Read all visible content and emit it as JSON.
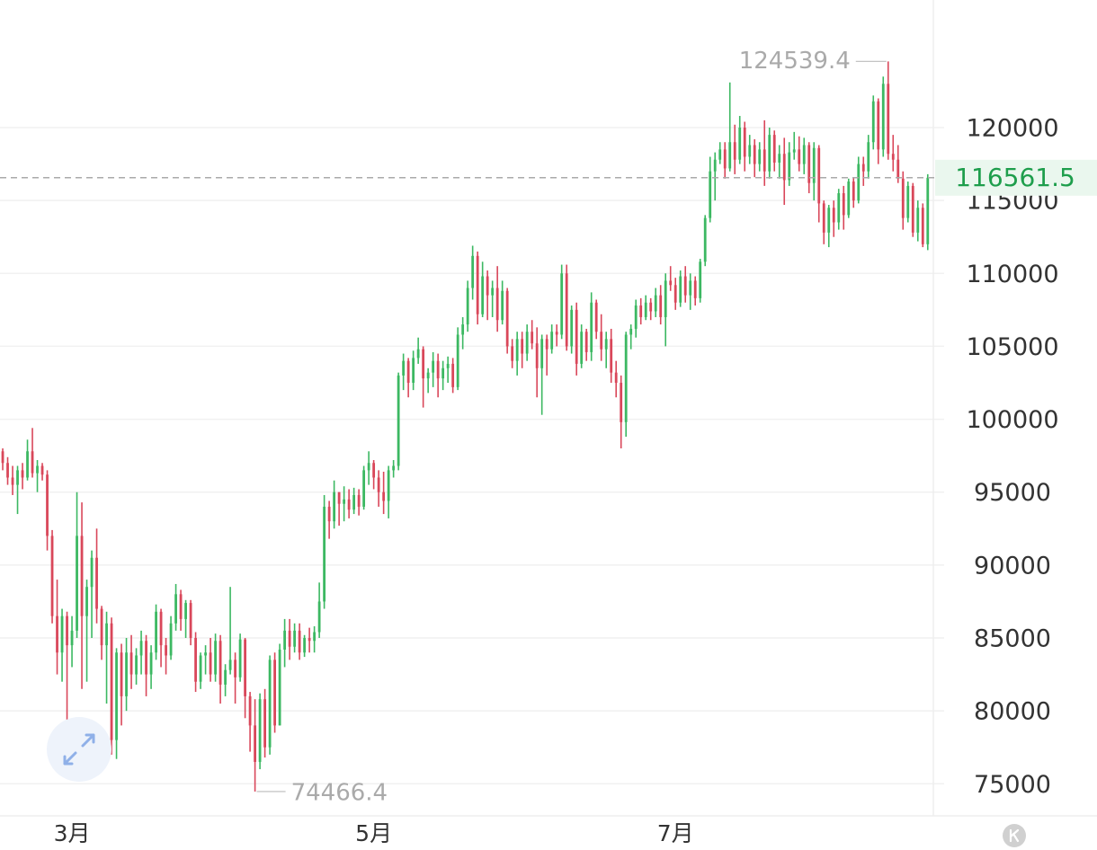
{
  "chart_data": {
    "type": "candlestick",
    "up_color": "#3cb862",
    "down_color": "#d9475a",
    "grid": true,
    "last_price_line": true,
    "xlim": [
      -0.55,
      187.95
    ],
    "xticks": [
      {
        "value": 14,
        "label": "3月"
      },
      {
        "value": 75,
        "label": "5月"
      },
      {
        "value": 136,
        "label": "7月"
      }
    ],
    "ylim": [
      72800,
      128750
    ],
    "yticks": [
      75000,
      80000,
      85000,
      90000,
      95000,
      100000,
      105000,
      110000,
      115000,
      120000
    ],
    "ohlc": [
      [
        97800,
        98000,
        96500,
        97000
      ],
      [
        97000,
        97400,
        95500,
        96000
      ],
      [
        96000,
        96800,
        94800,
        95500
      ],
      [
        95500,
        96800,
        93500,
        96500
      ],
      [
        96500,
        97000,
        95200,
        96000
      ],
      [
        96000,
        98600,
        95800,
        97800
      ],
      [
        97800,
        99400,
        96000,
        96300
      ],
      [
        96300,
        97200,
        95000,
        96800
      ],
      [
        96800,
        97000,
        95800,
        96200
      ],
      [
        96200,
        96500,
        91000,
        92000
      ],
      [
        92000,
        92400,
        86000,
        86500
      ],
      [
        86500,
        89000,
        82500,
        84000
      ],
      [
        84000,
        87000,
        82000,
        86500
      ],
      [
        86500,
        86800,
        78000,
        84500
      ],
      [
        84500,
        86500,
        83000,
        85500
      ],
      [
        85500,
        95000,
        85000,
        92000
      ],
      [
        92000,
        94300,
        81500,
        86500
      ],
      [
        86500,
        89000,
        82000,
        88500
      ],
      [
        88500,
        91000,
        85000,
        90500
      ],
      [
        90500,
        92500,
        86000,
        87000
      ],
      [
        87000,
        87200,
        83500,
        84500
      ],
      [
        84500,
        86800,
        80500,
        86000
      ],
      [
        86000,
        86400,
        77000,
        78000
      ],
      [
        78000,
        84300,
        76700,
        84000
      ],
      [
        84000,
        84600,
        79000,
        81000
      ],
      [
        81000,
        85000,
        80000,
        84000
      ],
      [
        84000,
        85200,
        81500,
        82500
      ],
      [
        82500,
        84300,
        81800,
        83800
      ],
      [
        83800,
        85500,
        82500,
        84800
      ],
      [
        84800,
        85200,
        81000,
        82500
      ],
      [
        82500,
        84500,
        81500,
        84000
      ],
      [
        84000,
        87300,
        83500,
        86800
      ],
      [
        86800,
        87000,
        83000,
        84500
      ],
      [
        84500,
        85000,
        82500,
        83800
      ],
      [
        83800,
        86500,
        83500,
        86000
      ],
      [
        86000,
        88700,
        85500,
        88000
      ],
      [
        88000,
        88300,
        85500,
        86300
      ],
      [
        86300,
        87600,
        85000,
        87400
      ],
      [
        87400,
        87600,
        84500,
        85000
      ],
      [
        85000,
        85400,
        81300,
        82000
      ],
      [
        82000,
        84000,
        81500,
        83800
      ],
      [
        83800,
        84500,
        82500,
        84000
      ],
      [
        84000,
        85000,
        82000,
        82500
      ],
      [
        82500,
        85300,
        82000,
        84800
      ],
      [
        84800,
        85200,
        80500,
        81800
      ],
      [
        81800,
        83200,
        81000,
        82800
      ],
      [
        82800,
        88500,
        82500,
        83500
      ],
      [
        83500,
        84000,
        80500,
        82300
      ],
      [
        82300,
        85300,
        82000,
        84900
      ],
      [
        84900,
        85000,
        79500,
        81000
      ],
      [
        81000,
        81300,
        77200,
        79000
      ],
      [
        79000,
        80800,
        74466.4,
        76500
      ],
      [
        76500,
        81200,
        76000,
        80800
      ],
      [
        80800,
        81500,
        76800,
        77500
      ],
      [
        77500,
        83800,
        77000,
        83500
      ],
      [
        83500,
        84000,
        78500,
        79000
      ],
      [
        79000,
        84600,
        79000,
        84200
      ],
      [
        84200,
        86300,
        83000,
        85500
      ],
      [
        85500,
        86300,
        83500,
        84400
      ],
      [
        84400,
        86000,
        84000,
        85500
      ],
      [
        85500,
        86000,
        83500,
        84000
      ],
      [
        84000,
        85200,
        83700,
        85000
      ],
      [
        85000,
        85700,
        84000,
        84800
      ],
      [
        84800,
        85800,
        84000,
        85400
      ],
      [
        85400,
        88800,
        85000,
        87500
      ],
      [
        87500,
        94800,
        87000,
        94000
      ],
      [
        94000,
        94400,
        91800,
        93000
      ],
      [
        93000,
        95800,
        92500,
        95000
      ],
      [
        95000,
        95000,
        92700,
        94200
      ],
      [
        94200,
        95400,
        93000,
        94500
      ],
      [
        94500,
        95200,
        93200,
        93800
      ],
      [
        93800,
        95300,
        93500,
        94800
      ],
      [
        94800,
        95200,
        93400,
        94000
      ],
      [
        94000,
        96800,
        93800,
        96500
      ],
      [
        96500,
        97800,
        95500,
        97000
      ],
      [
        97000,
        97200,
        95200,
        96000
      ],
      [
        96000,
        96500,
        94000,
        95000
      ],
      [
        95000,
        96400,
        93500,
        94400
      ],
      [
        94400,
        96800,
        93200,
        96500
      ],
      [
        96500,
        97200,
        96000,
        96800
      ],
      [
        96800,
        103200,
        96500,
        103000
      ],
      [
        103000,
        104500,
        102000,
        104000
      ],
      [
        104000,
        104200,
        101500,
        102500
      ],
      [
        102500,
        104700,
        102000,
        104200
      ],
      [
        104200,
        105600,
        103800,
        104800
      ],
      [
        104800,
        105000,
        100800,
        102800
      ],
      [
        102800,
        103500,
        101800,
        103200
      ],
      [
        103200,
        104600,
        102200,
        104000
      ],
      [
        104000,
        104500,
        101500,
        102800
      ],
      [
        102800,
        104000,
        102000,
        103500
      ],
      [
        103500,
        104300,
        102500,
        103800
      ],
      [
        103800,
        104200,
        101800,
        102200
      ],
      [
        102200,
        106300,
        102000,
        105800
      ],
      [
        105800,
        107000,
        104800,
        106500
      ],
      [
        106500,
        109500,
        106000,
        109000
      ],
      [
        109000,
        111900,
        108200,
        111200
      ],
      [
        111200,
        111500,
        106500,
        107200
      ],
      [
        107200,
        110800,
        107000,
        109800
      ],
      [
        109800,
        110200,
        106800,
        108500
      ],
      [
        108500,
        109500,
        107000,
        109000
      ],
      [
        109000,
        110500,
        106000,
        106800
      ],
      [
        106800,
        109500,
        106500,
        108800
      ],
      [
        108800,
        109000,
        104500,
        105000
      ],
      [
        105000,
        105500,
        103500,
        104000
      ],
      [
        104000,
        106000,
        103000,
        105500
      ],
      [
        105500,
        106000,
        103500,
        104500
      ],
      [
        104500,
        106500,
        104000,
        106000
      ],
      [
        106000,
        106800,
        104800,
        105200
      ],
      [
        105200,
        106300,
        101500,
        103500
      ],
      [
        103500,
        105800,
        100300,
        105500
      ],
      [
        105500,
        105800,
        103000,
        104800
      ],
      [
        104800,
        106500,
        104500,
        106000
      ],
      [
        106000,
        106500,
        105000,
        105800
      ],
      [
        105800,
        110600,
        105500,
        110000
      ],
      [
        110000,
        110600,
        104700,
        105000
      ],
      [
        105000,
        107800,
        104500,
        107500
      ],
      [
        107500,
        108000,
        103000,
        103800
      ],
      [
        103800,
        106500,
        103500,
        106000
      ],
      [
        106000,
        106200,
        104000,
        104600
      ],
      [
        104600,
        108700,
        104000,
        108000
      ],
      [
        108000,
        108200,
        105500,
        106000
      ],
      [
        106000,
        107200,
        104000,
        104800
      ],
      [
        104800,
        106000,
        103500,
        105500
      ],
      [
        105500,
        106200,
        102500,
        103200
      ],
      [
        103200,
        104000,
        101500,
        102500
      ],
      [
        102500,
        103000,
        98000,
        99800
      ],
      [
        99800,
        106000,
        98800,
        105800
      ],
      [
        105800,
        106500,
        104800,
        106200
      ],
      [
        106200,
        108200,
        105600,
        107800
      ],
      [
        107800,
        108300,
        106500,
        107000
      ],
      [
        107000,
        108500,
        106800,
        108000
      ],
      [
        108000,
        108300,
        106800,
        107400
      ],
      [
        107400,
        109000,
        107000,
        108500
      ],
      [
        108500,
        109200,
        106500,
        107000
      ],
      [
        107000,
        110000,
        105000,
        109500
      ],
      [
        109500,
        110500,
        108800,
        109200
      ],
      [
        109200,
        109700,
        107500,
        108000
      ],
      [
        108000,
        110200,
        107700,
        109800
      ],
      [
        109800,
        110500,
        108000,
        108500
      ],
      [
        108500,
        110000,
        107500,
        109500
      ],
      [
        109500,
        109800,
        107800,
        108300
      ],
      [
        108300,
        111000,
        108000,
        110800
      ],
      [
        110800,
        114000,
        110500,
        113800
      ],
      [
        113800,
        118000,
        113500,
        117000
      ],
      [
        117000,
        118300,
        115000,
        117800
      ],
      [
        117800,
        119000,
        117500,
        118500
      ],
      [
        118500,
        119000,
        116500,
        117200
      ],
      [
        117200,
        123100,
        117000,
        119000
      ],
      [
        119000,
        120200,
        116800,
        117800
      ],
      [
        117800,
        120800,
        117500,
        120000
      ],
      [
        120000,
        120400,
        117000,
        118000
      ],
      [
        118000,
        119500,
        117500,
        118800
      ],
      [
        118800,
        119200,
        116600,
        117500
      ],
      [
        117500,
        119000,
        117000,
        118500
      ],
      [
        118500,
        120500,
        116000,
        117000
      ],
      [
        117000,
        120000,
        116500,
        119500
      ],
      [
        119500,
        119800,
        117000,
        117600
      ],
      [
        117600,
        118800,
        116500,
        118200
      ],
      [
        118200,
        119300,
        114700,
        116400
      ],
      [
        116400,
        119000,
        116000,
        118300
      ],
      [
        118300,
        119700,
        117800,
        118500
      ],
      [
        118500,
        119400,
        117000,
        117500
      ],
      [
        117500,
        119300,
        116800,
        118800
      ],
      [
        118800,
        119000,
        115500,
        116200
      ],
      [
        116200,
        119000,
        115000,
        118600
      ],
      [
        118600,
        118800,
        113500,
        114800
      ],
      [
        114800,
        115000,
        112000,
        112800
      ],
      [
        112800,
        114700,
        111800,
        114500
      ],
      [
        114500,
        115000,
        112500,
        113500
      ],
      [
        113500,
        115800,
        113000,
        115500
      ],
      [
        115500,
        116000,
        113000,
        114000
      ],
      [
        114000,
        116500,
        113800,
        116300
      ],
      [
        116300,
        116600,
        114500,
        115000
      ],
      [
        115000,
        118000,
        114800,
        117500
      ],
      [
        117500,
        118000,
        116000,
        117000
      ],
      [
        117000,
        119500,
        116500,
        119000
      ],
      [
        119000,
        122200,
        118500,
        121800
      ],
      [
        121800,
        122000,
        117500,
        118500
      ],
      [
        118500,
        123500,
        118000,
        123000
      ],
      [
        123000,
        124539.4,
        117800,
        118200
      ],
      [
        118200,
        119500,
        117000,
        117800
      ],
      [
        117800,
        118800,
        116200,
        116500
      ],
      [
        116500,
        117000,
        113000,
        113800
      ],
      [
        113800,
        116300,
        113500,
        116000
      ],
      [
        116000,
        116200,
        112500,
        112800
      ],
      [
        112800,
        115000,
        112200,
        114500
      ],
      [
        114500,
        114800,
        111800,
        112000
      ],
      [
        112000,
        116800,
        111600,
        116561.5
      ]
    ]
  }
}
